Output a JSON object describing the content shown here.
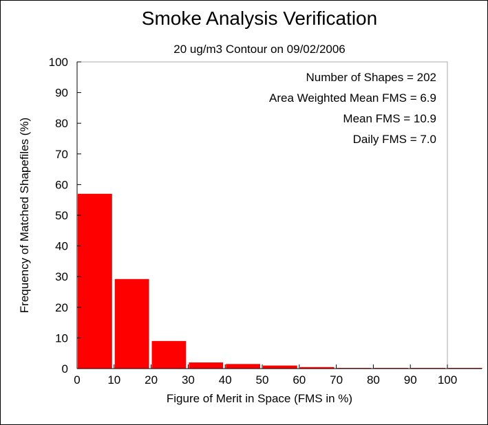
{
  "chart_data": {
    "type": "bar",
    "title": "Smoke Analysis Verification",
    "subtitle": "20 ug/m3 Contour on 09/02/2006",
    "xlabel": "Figure of Merit in Space (FMS in %)",
    "ylabel": "Frequency of Matched Shapefiles (%)",
    "xlim": [
      0,
      100
    ],
    "ylim": [
      0,
      100
    ],
    "x_ticks": [
      0,
      10,
      20,
      30,
      40,
      50,
      60,
      70,
      80,
      90,
      100
    ],
    "y_ticks": [
      0,
      10,
      20,
      30,
      40,
      50,
      60,
      70,
      80,
      90,
      100
    ],
    "bin_width": 10,
    "bins": [
      {
        "start": 0,
        "end": 10,
        "value": 57.0
      },
      {
        "start": 10,
        "end": 20,
        "value": 29.2
      },
      {
        "start": 20,
        "end": 30,
        "value": 9.0
      },
      {
        "start": 30,
        "end": 40,
        "value": 2.0
      },
      {
        "start": 40,
        "end": 50,
        "value": 1.5
      },
      {
        "start": 50,
        "end": 60,
        "value": 1.0
      },
      {
        "start": 60,
        "end": 70,
        "value": 0.5
      },
      {
        "start": 70,
        "end": 80,
        "value": 0.1
      },
      {
        "start": 80,
        "end": 90,
        "value": 0.1
      },
      {
        "start": 90,
        "end": 100,
        "value": 0.1
      },
      {
        "start": 100,
        "end": 110,
        "value": 0.1
      }
    ],
    "bar_color": "#ff0000",
    "grid": false,
    "annotations": [
      "Number of Shapes = 202",
      "Area Weighted Mean FMS = 6.9",
      "Mean FMS = 10.9",
      "Daily FMS = 7.0"
    ]
  }
}
